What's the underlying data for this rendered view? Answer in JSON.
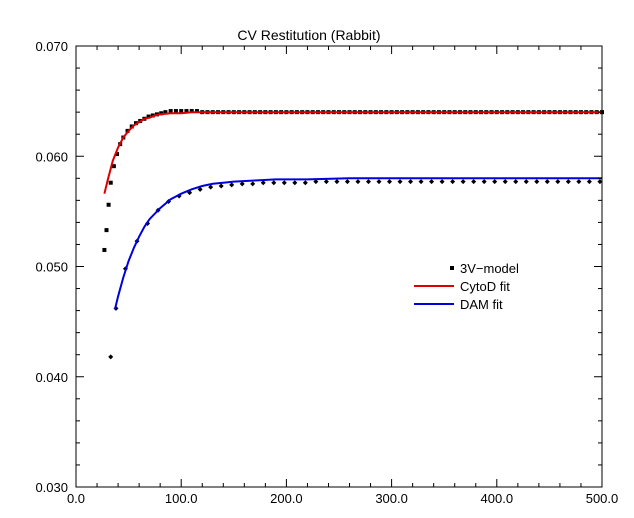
{
  "chart_data": {
    "type": "scatter",
    "title": "CV Restitution (Rabbit)",
    "xlabel": "",
    "ylabel": "",
    "xlim": [
      0,
      500
    ],
    "ylim": [
      0.03,
      0.07
    ],
    "x_ticks": [
      "0.0",
      "100.0",
      "200.0",
      "300.0",
      "400.0",
      "500.0"
    ],
    "x_tick_values": [
      0,
      100,
      200,
      300,
      400,
      500
    ],
    "y_ticks": [
      "0.030",
      "0.040",
      "0.050",
      "0.060",
      "0.070"
    ],
    "y_tick_values": [
      0.03,
      0.04,
      0.05,
      0.06,
      0.07
    ],
    "grid": false,
    "legend_position": "right-middle",
    "series": [
      {
        "name": "3V−model",
        "kind": "scatter",
        "marker": "square",
        "color": "#000000",
        "points": [
          [
            27,
            0.0515
          ],
          [
            29,
            0.0533
          ],
          [
            31,
            0.0556
          ],
          [
            33,
            0.0576
          ],
          [
            36,
            0.0591
          ],
          [
            39,
            0.0602
          ],
          [
            42,
            0.0611
          ],
          [
            45,
            0.0617
          ],
          [
            49,
            0.0623
          ],
          [
            53,
            0.0627
          ],
          [
            57,
            0.063
          ],
          [
            61,
            0.0632
          ],
          [
            65,
            0.0634
          ],
          [
            69,
            0.0636
          ],
          [
            73,
            0.0637
          ],
          [
            77,
            0.0638
          ],
          [
            81,
            0.0639
          ],
          [
            85,
            0.064
          ],
          [
            90,
            0.0641
          ],
          [
            95,
            0.0641
          ],
          [
            100,
            0.0641
          ],
          [
            105,
            0.0641
          ],
          [
            110,
            0.0641
          ],
          [
            115,
            0.0641
          ],
          [
            120,
            0.064
          ],
          [
            125,
            0.064
          ],
          [
            130,
            0.064
          ],
          [
            135,
            0.064
          ],
          [
            140,
            0.064
          ],
          [
            145,
            0.064
          ],
          [
            150,
            0.064
          ],
          [
            155,
            0.064
          ],
          [
            160,
            0.064
          ],
          [
            165,
            0.064
          ],
          [
            170,
            0.064
          ],
          [
            175,
            0.064
          ],
          [
            180,
            0.064
          ],
          [
            185,
            0.064
          ],
          [
            190,
            0.064
          ],
          [
            195,
            0.064
          ],
          [
            200,
            0.064
          ],
          [
            205,
            0.064
          ],
          [
            210,
            0.064
          ],
          [
            215,
            0.064
          ],
          [
            220,
            0.064
          ],
          [
            225,
            0.064
          ],
          [
            230,
            0.064
          ],
          [
            235,
            0.064
          ],
          [
            240,
            0.064
          ],
          [
            245,
            0.064
          ],
          [
            250,
            0.064
          ],
          [
            255,
            0.064
          ],
          [
            260,
            0.064
          ],
          [
            265,
            0.064
          ],
          [
            270,
            0.064
          ],
          [
            275,
            0.064
          ],
          [
            280,
            0.064
          ],
          [
            285,
            0.064
          ],
          [
            290,
            0.064
          ],
          [
            295,
            0.064
          ],
          [
            300,
            0.064
          ],
          [
            305,
            0.064
          ],
          [
            310,
            0.064
          ],
          [
            315,
            0.064
          ],
          [
            320,
            0.064
          ],
          [
            325,
            0.064
          ],
          [
            330,
            0.064
          ],
          [
            335,
            0.064
          ],
          [
            340,
            0.064
          ],
          [
            345,
            0.064
          ],
          [
            350,
            0.064
          ],
          [
            355,
            0.064
          ],
          [
            360,
            0.064
          ],
          [
            365,
            0.064
          ],
          [
            370,
            0.064
          ],
          [
            375,
            0.064
          ],
          [
            380,
            0.064
          ],
          [
            385,
            0.064
          ],
          [
            390,
            0.064
          ],
          [
            395,
            0.064
          ],
          [
            400,
            0.064
          ],
          [
            405,
            0.064
          ],
          [
            410,
            0.064
          ],
          [
            415,
            0.064
          ],
          [
            420,
            0.064
          ],
          [
            425,
            0.064
          ],
          [
            430,
            0.064
          ],
          [
            435,
            0.064
          ],
          [
            440,
            0.064
          ],
          [
            445,
            0.064
          ],
          [
            450,
            0.064
          ],
          [
            455,
            0.064
          ],
          [
            460,
            0.064
          ],
          [
            465,
            0.064
          ],
          [
            470,
            0.064
          ],
          [
            475,
            0.064
          ],
          [
            480,
            0.064
          ],
          [
            485,
            0.064
          ],
          [
            490,
            0.064
          ],
          [
            495,
            0.064
          ],
          [
            500,
            0.064
          ]
        ]
      },
      {
        "name": "",
        "kind": "scatter",
        "marker": "diamond",
        "color": "#000000",
        "points": [
          [
            33,
            0.0418
          ],
          [
            38,
            0.0462
          ],
          [
            47,
            0.0498
          ],
          [
            58,
            0.0523
          ],
          [
            68,
            0.0539
          ],
          [
            78,
            0.0551
          ],
          [
            88,
            0.0559
          ],
          [
            98,
            0.0564
          ],
          [
            108,
            0.0567
          ],
          [
            118,
            0.057
          ],
          [
            128,
            0.0572
          ],
          [
            138,
            0.0573
          ],
          [
            148,
            0.0574
          ],
          [
            158,
            0.0575
          ],
          [
            168,
            0.0575
          ],
          [
            178,
            0.0576
          ],
          [
            188,
            0.0576
          ],
          [
            198,
            0.0576
          ],
          [
            208,
            0.0576
          ],
          [
            218,
            0.0576
          ],
          [
            228,
            0.0577
          ],
          [
            238,
            0.0577
          ],
          [
            248,
            0.0577
          ],
          [
            258,
            0.0577
          ],
          [
            268,
            0.0577
          ],
          [
            278,
            0.0577
          ],
          [
            288,
            0.0577
          ],
          [
            298,
            0.0577
          ],
          [
            308,
            0.0577
          ],
          [
            318,
            0.0577
          ],
          [
            328,
            0.0577
          ],
          [
            338,
            0.0577
          ],
          [
            348,
            0.0577
          ],
          [
            358,
            0.0577
          ],
          [
            368,
            0.0577
          ],
          [
            378,
            0.0577
          ],
          [
            388,
            0.0577
          ],
          [
            398,
            0.0577
          ],
          [
            408,
            0.0577
          ],
          [
            418,
            0.0577
          ],
          [
            428,
            0.0577
          ],
          [
            438,
            0.0577
          ],
          [
            448,
            0.0577
          ],
          [
            458,
            0.0577
          ],
          [
            468,
            0.0577
          ],
          [
            478,
            0.0577
          ],
          [
            488,
            0.0577
          ],
          [
            498,
            0.0577
          ]
        ]
      },
      {
        "name": "CytoD fit",
        "kind": "line",
        "color": "#dd0000",
        "points": [
          [
            27,
            0.0566
          ],
          [
            30,
            0.0578
          ],
          [
            35,
            0.0596
          ],
          [
            40,
            0.0608
          ],
          [
            45,
            0.0617
          ],
          [
            50,
            0.0623
          ],
          [
            55,
            0.0628
          ],
          [
            60,
            0.0631
          ],
          [
            65,
            0.0634
          ],
          [
            70,
            0.0635
          ],
          [
            75,
            0.0637
          ],
          [
            80,
            0.0638
          ],
          [
            90,
            0.0639
          ],
          [
            100,
            0.0639
          ],
          [
            110,
            0.064
          ],
          [
            120,
            0.064
          ],
          [
            140,
            0.064
          ],
          [
            160,
            0.064
          ],
          [
            200,
            0.064
          ],
          [
            300,
            0.064
          ],
          [
            400,
            0.064
          ],
          [
            500,
            0.064
          ]
        ]
      },
      {
        "name": "DAM fit",
        "kind": "line",
        "color": "#0000dd",
        "points": [
          [
            37,
            0.0461
          ],
          [
            40,
            0.0473
          ],
          [
            45,
            0.049
          ],
          [
            50,
            0.0505
          ],
          [
            55,
            0.0517
          ],
          [
            60,
            0.0527
          ],
          [
            65,
            0.0536
          ],
          [
            70,
            0.0543
          ],
          [
            80,
            0.0553
          ],
          [
            90,
            0.0561
          ],
          [
            100,
            0.0566
          ],
          [
            110,
            0.057
          ],
          [
            120,
            0.0573
          ],
          [
            130,
            0.0575
          ],
          [
            140,
            0.0576
          ],
          [
            150,
            0.0577
          ],
          [
            170,
            0.0578
          ],
          [
            190,
            0.0579
          ],
          [
            220,
            0.0579
          ],
          [
            260,
            0.058
          ],
          [
            300,
            0.058
          ],
          [
            400,
            0.058
          ],
          [
            500,
            0.058
          ]
        ]
      }
    ]
  }
}
